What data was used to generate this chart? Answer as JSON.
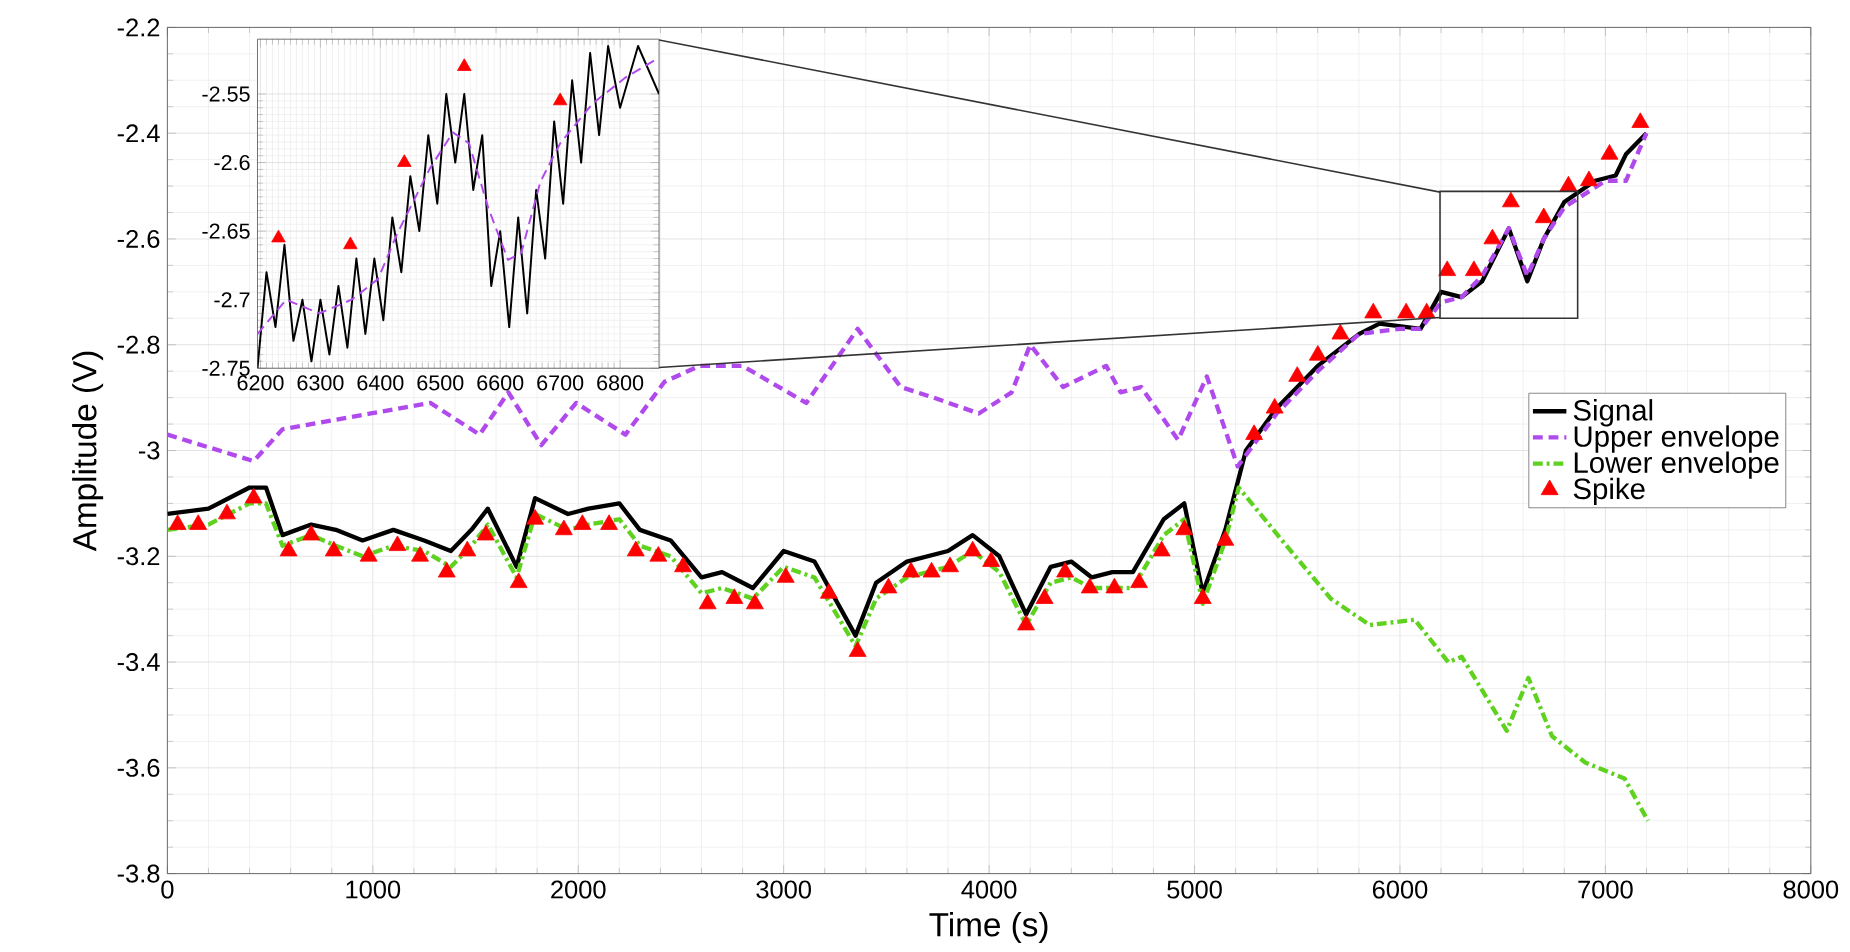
{
  "chart_data": [
    {
      "type": "line",
      "xlabel": "Time (s)",
      "ylabel": "Amplitude (V)",
      "xlim": [
        0,
        8000
      ],
      "ylim": [
        -3.8,
        -2.2
      ],
      "xticks": [
        0,
        1000,
        2000,
        3000,
        4000,
        5000,
        6000,
        7000,
        8000
      ],
      "yticks": [
        -3.8,
        -3.6,
        -3.4,
        -3.2,
        -3,
        -2.8,
        -2.6,
        -2.4,
        -2.2
      ],
      "grid": true,
      "legend": "right",
      "series": [
        {
          "name": "Signal",
          "color": "#000000",
          "line_style": "solid",
          "marker": "none",
          "x": [
            0,
            200,
            400,
            480,
            560,
            700,
            820,
            950,
            1100,
            1250,
            1380,
            1480,
            1560,
            1700,
            1790,
            1950,
            2050,
            2200,
            2300,
            2450,
            2600,
            2700,
            2850,
            3000,
            3150,
            3350,
            3450,
            3600,
            3800,
            3920,
            4050,
            4180,
            4300,
            4400,
            4500,
            4600,
            4700,
            4850,
            4950,
            5040,
            5150,
            5250,
            5400,
            5600,
            5800,
            5900,
            6100,
            6200,
            6300,
            6400,
            6530,
            6620,
            6700,
            6800,
            6950,
            7050,
            7100,
            7200
          ],
          "values": [
            -3.12,
            -3.11,
            -3.07,
            -3.07,
            -3.16,
            -3.14,
            -3.15,
            -3.17,
            -3.15,
            -3.17,
            -3.19,
            -3.15,
            -3.11,
            -3.22,
            -3.09,
            -3.12,
            -3.11,
            -3.1,
            -3.15,
            -3.17,
            -3.24,
            -3.23,
            -3.26,
            -3.19,
            -3.21,
            -3.35,
            -3.25,
            -3.21,
            -3.19,
            -3.16,
            -3.2,
            -3.31,
            -3.22,
            -3.21,
            -3.24,
            -3.23,
            -3.23,
            -3.13,
            -3.1,
            -3.27,
            -3.15,
            -3.0,
            -2.92,
            -2.84,
            -2.78,
            -2.76,
            -2.77,
            -2.7,
            -2.71,
            -2.68,
            -2.58,
            -2.68,
            -2.6,
            -2.53,
            -2.49,
            -2.48,
            -2.44,
            -2.4
          ]
        },
        {
          "name": "Upper envelope",
          "color": "#b14aed",
          "line_style": "dashed",
          "marker": "none",
          "x": [
            0,
            420,
            560,
            990,
            1280,
            1520,
            1660,
            1820,
            1990,
            2230,
            2420,
            2590,
            2800,
            3110,
            3360,
            3570,
            3730,
            3950,
            4110,
            4200,
            4360,
            4570,
            4640,
            4740,
            4920,
            5060,
            5210,
            5400,
            5600,
            5800,
            6000,
            6100,
            6200,
            6300,
            6400,
            6530,
            6620,
            6700,
            6800,
            6880,
            7000,
            7100,
            7200
          ],
          "values": [
            -2.97,
            -3.02,
            -2.96,
            -2.93,
            -2.91,
            -2.97,
            -2.89,
            -2.99,
            -2.91,
            -2.97,
            -2.87,
            -2.84,
            -2.84,
            -2.91,
            -2.77,
            -2.88,
            -2.9,
            -2.93,
            -2.89,
            -2.8,
            -2.88,
            -2.84,
            -2.89,
            -2.88,
            -2.98,
            -2.86,
            -3.03,
            -2.93,
            -2.85,
            -2.78,
            -2.77,
            -2.77,
            -2.72,
            -2.71,
            -2.67,
            -2.58,
            -2.67,
            -2.6,
            -2.54,
            -2.52,
            -2.49,
            -2.49,
            -2.4
          ]
        },
        {
          "name": "Lower envelope",
          "color": "#5fd11f",
          "line_style": "dashdot",
          "marker": "none",
          "x": [
            0,
            200,
            400,
            480,
            560,
            700,
            820,
            950,
            1100,
            1250,
            1380,
            1480,
            1560,
            1700,
            1790,
            1950,
            2050,
            2200,
            2300,
            2450,
            2600,
            2700,
            2850,
            3000,
            3150,
            3350,
            3450,
            3600,
            3800,
            3920,
            4050,
            4180,
            4300,
            4400,
            4500,
            4600,
            4700,
            4850,
            4950,
            5040,
            5150,
            5215,
            5405,
            5663,
            5853,
            6072,
            6235,
            6301,
            6520,
            6625,
            6740,
            6902,
            7093,
            7207
          ],
          "values": [
            -3.15,
            -3.14,
            -3.1,
            -3.1,
            -3.18,
            -3.16,
            -3.18,
            -3.2,
            -3.18,
            -3.19,
            -3.22,
            -3.18,
            -3.14,
            -3.24,
            -3.12,
            -3.15,
            -3.14,
            -3.13,
            -3.18,
            -3.2,
            -3.27,
            -3.26,
            -3.28,
            -3.22,
            -3.24,
            -3.37,
            -3.28,
            -3.24,
            -3.22,
            -3.19,
            -3.23,
            -3.33,
            -3.25,
            -3.24,
            -3.26,
            -3.26,
            -3.26,
            -3.16,
            -3.13,
            -3.29,
            -3.17,
            -3.07,
            -3.16,
            -3.28,
            -3.33,
            -3.32,
            -3.4,
            -3.39,
            -3.53,
            -3.43,
            -3.54,
            -3.59,
            -3.62,
            -3.7
          ]
        },
        {
          "name": "Spike",
          "type": "scatter",
          "color": "#ff0000",
          "marker": "triangle",
          "x": [
            50,
            150,
            290,
            420,
            590,
            700,
            810,
            980,
            1120,
            1230,
            1360,
            1460,
            1550,
            1710,
            1790,
            1930,
            2020,
            2150,
            2280,
            2390,
            2510,
            2630,
            2760,
            2860,
            3010,
            3220,
            3360,
            3510,
            3620,
            3720,
            3810,
            3920,
            4010,
            4180,
            4270,
            4370,
            4490,
            4610,
            4730,
            4840,
            4950,
            5040,
            5150,
            5290,
            5390,
            5500,
            5600,
            5710,
            5870,
            6030,
            6130,
            6230,
            6360,
            6450,
            6540,
            6700,
            6820,
            6920,
            7020,
            7170
          ],
          "values": [
            -3.14,
            -3.14,
            -3.12,
            -3.09,
            -3.19,
            -3.16,
            -3.19,
            -3.2,
            -3.18,
            -3.2,
            -3.23,
            -3.19,
            -3.16,
            -3.25,
            -3.13,
            -3.15,
            -3.14,
            -3.14,
            -3.19,
            -3.2,
            -3.22,
            -3.29,
            -3.28,
            -3.29,
            -3.24,
            -3.27,
            -3.38,
            -3.26,
            -3.23,
            -3.23,
            -3.22,
            -3.19,
            -3.21,
            -3.33,
            -3.28,
            -3.23,
            -3.26,
            -3.26,
            -3.25,
            -3.19,
            -3.15,
            -3.28,
            -3.17,
            -2.97,
            -2.92,
            -2.86,
            -2.82,
            -2.78,
            -2.74,
            -2.74,
            -2.74,
            -2.66,
            -2.66,
            -2.6,
            -2.53,
            -2.56,
            -2.5,
            -2.49,
            -2.44,
            -2.38
          ]
        }
      ]
    },
    {
      "type": "line",
      "xlim": [
        6195,
        6865
      ],
      "ylim": [
        -2.75,
        -2.51
      ],
      "xticks": [
        6200,
        6300,
        6400,
        6500,
        6600,
        6700,
        6800
      ],
      "yticks": [
        -2.75,
        -2.7,
        -2.65,
        -2.6,
        -2.55
      ],
      "grid": true,
      "series": [
        {
          "color": "#000000",
          "line_style": "solid",
          "marker": "none",
          "x": [
            6195,
            6210,
            6225,
            6240,
            6255,
            6270,
            6285,
            6300,
            6315,
            6330,
            6345,
            6360,
            6375,
            6390,
            6405,
            6420,
            6435,
            6450,
            6465,
            6480,
            6495,
            6510,
            6525,
            6540,
            6555,
            6570,
            6585,
            6600,
            6615,
            6630,
            6645,
            6660,
            6675,
            6690,
            6705,
            6720,
            6735,
            6750,
            6765,
            6780,
            6800,
            6830,
            6865
          ],
          "values": [
            -2.75,
            -2.68,
            -2.72,
            -2.66,
            -2.73,
            -2.7,
            -2.745,
            -2.7,
            -2.74,
            -2.69,
            -2.735,
            -2.67,
            -2.725,
            -2.67,
            -2.715,
            -2.64,
            -2.68,
            -2.61,
            -2.65,
            -2.58,
            -2.63,
            -2.55,
            -2.6,
            -2.55,
            -2.62,
            -2.58,
            -2.69,
            -2.65,
            -2.72,
            -2.64,
            -2.71,
            -2.62,
            -2.67,
            -2.57,
            -2.63,
            -2.54,
            -2.6,
            -2.52,
            -2.58,
            -2.515,
            -2.56,
            -2.515,
            -2.55
          ]
        },
        {
          "color": "#b14aed",
          "line_style": "dashed",
          "marker": "none",
          "x": [
            6195,
            6243,
            6298,
            6352,
            6396,
            6428,
            6483,
            6521,
            6548,
            6580,
            6613,
            6635,
            6667,
            6700,
            6754,
            6809,
            6863
          ],
          "values": [
            -2.725,
            -2.7,
            -2.71,
            -2.7,
            -2.685,
            -2.652,
            -2.604,
            -2.578,
            -2.586,
            -2.633,
            -2.671,
            -2.666,
            -2.614,
            -2.586,
            -2.557,
            -2.538,
            -2.524
          ]
        },
        {
          "type": "scatter",
          "color": "#ff0000",
          "marker": "triangle",
          "x": [
            6230,
            6350,
            6440,
            6540,
            6700
          ],
          "values": [
            -2.655,
            -2.66,
            -2.6,
            -2.53,
            -2.555
          ]
        }
      ]
    }
  ]
}
